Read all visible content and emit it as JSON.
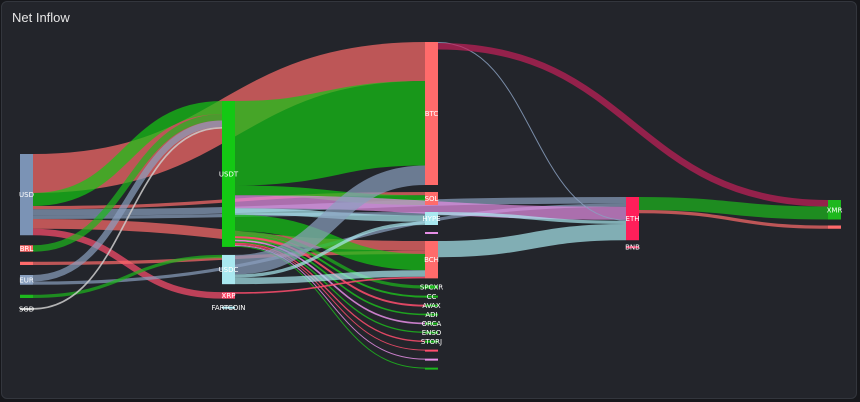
{
  "title": "Net Inflow",
  "chart_data": {
    "type": "sankey",
    "title": "Net Inflow",
    "nodes": [
      {
        "id": "USD",
        "label": "USD",
        "col": 0,
        "color": "#7b93b5"
      },
      {
        "id": "BRL",
        "label": "BRL",
        "col": 0,
        "color": "#ff6b6b"
      },
      {
        "id": "SRC3",
        "label": "",
        "col": 0,
        "color": "#ff6b6b"
      },
      {
        "id": "EUR",
        "label": "EUR",
        "col": 0,
        "color": "#8aa0bf"
      },
      {
        "id": "SRC5",
        "label": "",
        "col": 0,
        "color": "#1db81d"
      },
      {
        "id": "SGD",
        "label": "SGD",
        "col": 0,
        "color": "#cccccc"
      },
      {
        "id": "USDT",
        "label": "USDT",
        "col": 1,
        "color": "#14c814"
      },
      {
        "id": "USDC",
        "label": "USDC",
        "col": 1,
        "color": "#a9e8f0"
      },
      {
        "id": "XRP",
        "label": "XRP",
        "col": 1,
        "color": "#ff4d6d"
      },
      {
        "id": "FARTCOIN",
        "label": "FARTCOIN",
        "col": 1,
        "color": "#a9e8f0"
      },
      {
        "id": "BTC",
        "label": "BTC",
        "col": 2,
        "color": "#ff6b6b"
      },
      {
        "id": "SOL",
        "label": "SOL",
        "col": 2,
        "color": "#ff6b6b"
      },
      {
        "id": "HYPE",
        "label": "HYPE",
        "col": 2,
        "color": "#a9e8f0"
      },
      {
        "id": "C2_4",
        "label": "",
        "col": 2,
        "color": "#e58ee5"
      },
      {
        "id": "BCH",
        "label": "BCH",
        "col": 2,
        "color": "#ff6b6b"
      },
      {
        "id": "SPCXR",
        "label": "SPCXR",
        "col": 2,
        "color": "#1db81d"
      },
      {
        "id": "CC",
        "label": "CC",
        "col": 2,
        "color": "#1db81d"
      },
      {
        "id": "AVAX",
        "label": "AVAX",
        "col": 2,
        "color": "#1db81d"
      },
      {
        "id": "ADI",
        "label": "ADI",
        "col": 2,
        "color": "#1db81d"
      },
      {
        "id": "ORCA",
        "label": "ORCA",
        "col": 2,
        "color": "#1db81d"
      },
      {
        "id": "ENSO",
        "label": "ENSO",
        "col": 2,
        "color": "#1db81d"
      },
      {
        "id": "STORJ",
        "label": "STORJ",
        "col": 2,
        "color": "#1db81d"
      },
      {
        "id": "C2_s1",
        "label": "",
        "col": 2,
        "color": "#ff4d6d"
      },
      {
        "id": "C2_s2",
        "label": "",
        "col": 2,
        "color": "#e58ee5"
      },
      {
        "id": "C2_s3",
        "label": "",
        "col": 2,
        "color": "#1db81d"
      },
      {
        "id": "ETH",
        "label": "ETH",
        "col": 3,
        "color": "#ff1f5a"
      },
      {
        "id": "BNB",
        "label": "BNB",
        "col": 3,
        "color": "#ff1f5a"
      },
      {
        "id": "XMR",
        "label": "XMR",
        "col": 4,
        "color": "#1db81d"
      },
      {
        "id": "C4_2",
        "label": "",
        "col": 4,
        "color": "#ff6b6b"
      }
    ],
    "links": [
      {
        "source": "USD",
        "target": "BTC",
        "value": 12,
        "color": "#ff6b6b"
      },
      {
        "source": "USD",
        "target": "USDT",
        "value": 4,
        "color": "#14c814"
      },
      {
        "source": "USD",
        "target": "BCH",
        "value": 3,
        "color": "#ff6b6b"
      },
      {
        "source": "USD",
        "target": "ETH",
        "value": 2,
        "color": "#8aa0bf"
      },
      {
        "source": "USD",
        "target": "XRP",
        "value": 2,
        "color": "#ff4d6d"
      },
      {
        "source": "USD",
        "target": "SOL",
        "value": 1,
        "color": "#ff6b6b"
      },
      {
        "source": "USD",
        "target": "HYPE",
        "value": 1,
        "color": "#8aa0bf"
      },
      {
        "source": "BRL",
        "target": "USDT",
        "value": 2,
        "color": "#1db81d"
      },
      {
        "source": "SRC3",
        "target": "BCH",
        "value": 1,
        "color": "#ff6b6b"
      },
      {
        "source": "EUR",
        "target": "USDT",
        "value": 2,
        "color": "#8aa0bf"
      },
      {
        "source": "EUR",
        "target": "ETH",
        "value": 1,
        "color": "#8aa0bf"
      },
      {
        "source": "SRC5",
        "target": "USDC",
        "value": 1,
        "color": "#1db81d"
      },
      {
        "source": "SGD",
        "target": "USDT",
        "value": 0.5,
        "color": "#cccccc"
      },
      {
        "source": "USDT",
        "target": "BTC",
        "value": 26,
        "color": "#14c814"
      },
      {
        "source": "USDT",
        "target": "SOL",
        "value": 3,
        "color": "#14c814"
      },
      {
        "source": "USDT",
        "target": "BCH",
        "value": 5,
        "color": "#14c814"
      },
      {
        "source": "USDT",
        "target": "ETH",
        "value": 4,
        "color": "#e58ee5"
      },
      {
        "source": "USDT",
        "target": "HYPE",
        "value": 2,
        "color": "#a9e8f0"
      },
      {
        "source": "USDT",
        "target": "SPCXR",
        "value": 1,
        "color": "#1db81d"
      },
      {
        "source": "USDT",
        "target": "CC",
        "value": 0.6,
        "color": "#1db81d"
      },
      {
        "source": "USDT",
        "target": "AVAX",
        "value": 0.6,
        "color": "#ff4d6d"
      },
      {
        "source": "USDT",
        "target": "ADI",
        "value": 0.5,
        "color": "#1db81d"
      },
      {
        "source": "USDT",
        "target": "ORCA",
        "value": 0.5,
        "color": "#e58ee5"
      },
      {
        "source": "USDT",
        "target": "ENSO",
        "value": 0.4,
        "color": "#1db81d"
      },
      {
        "source": "USDT",
        "target": "STORJ",
        "value": 0.4,
        "color": "#ff4d6d"
      },
      {
        "source": "USDT",
        "target": "C2_s1",
        "value": 0.3,
        "color": "#ff4d6d"
      },
      {
        "source": "USDT",
        "target": "C2_s2",
        "value": 0.3,
        "color": "#e58ee5"
      },
      {
        "source": "USDT",
        "target": "C2_s3",
        "value": 0.3,
        "color": "#1db81d"
      },
      {
        "source": "USDC",
        "target": "BTC",
        "value": 6,
        "color": "#8aa0bf"
      },
      {
        "source": "USDC",
        "target": "BCH",
        "value": 2,
        "color": "#a9e8f0"
      },
      {
        "source": "USDC",
        "target": "HYPE",
        "value": 1,
        "color": "#a9e8f0"
      },
      {
        "source": "XRP",
        "target": "BCH",
        "value": 0.5,
        "color": "#ff4d6d"
      },
      {
        "source": "BTC",
        "target": "XMR",
        "value": 2,
        "color": "#c41f5a"
      },
      {
        "source": "BTC",
        "target": "ETH",
        "value": 0.3,
        "color": "#8aa0bf"
      },
      {
        "source": "BCH",
        "target": "ETH",
        "value": 5,
        "color": "#a9e8f0"
      },
      {
        "source": "HYPE",
        "target": "ETH",
        "value": 1,
        "color": "#a9e8f0"
      },
      {
        "source": "ETH",
        "target": "XMR",
        "value": 4,
        "color": "#1db81d"
      },
      {
        "source": "ETH",
        "target": "C4_2",
        "value": 1,
        "color": "#ff6b6b"
      }
    ]
  }
}
